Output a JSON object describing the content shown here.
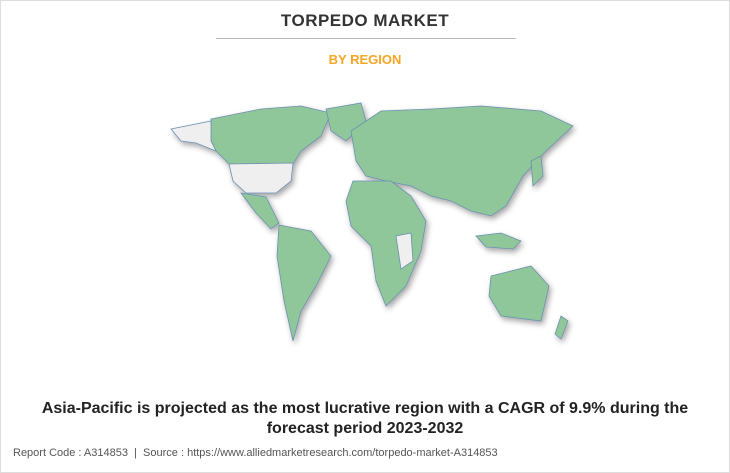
{
  "header": {
    "title": "TORPEDO MARKET",
    "subtitle": "BY REGION"
  },
  "caption": "Asia-Pacific is projected as the most lucrative region with a CAGR of 9.9% during the forecast period 2023-2032",
  "footer": "Report Code : A314853  |  Source : https://www.alliedmarketresearch.com/torpedo-market-A314853"
}
